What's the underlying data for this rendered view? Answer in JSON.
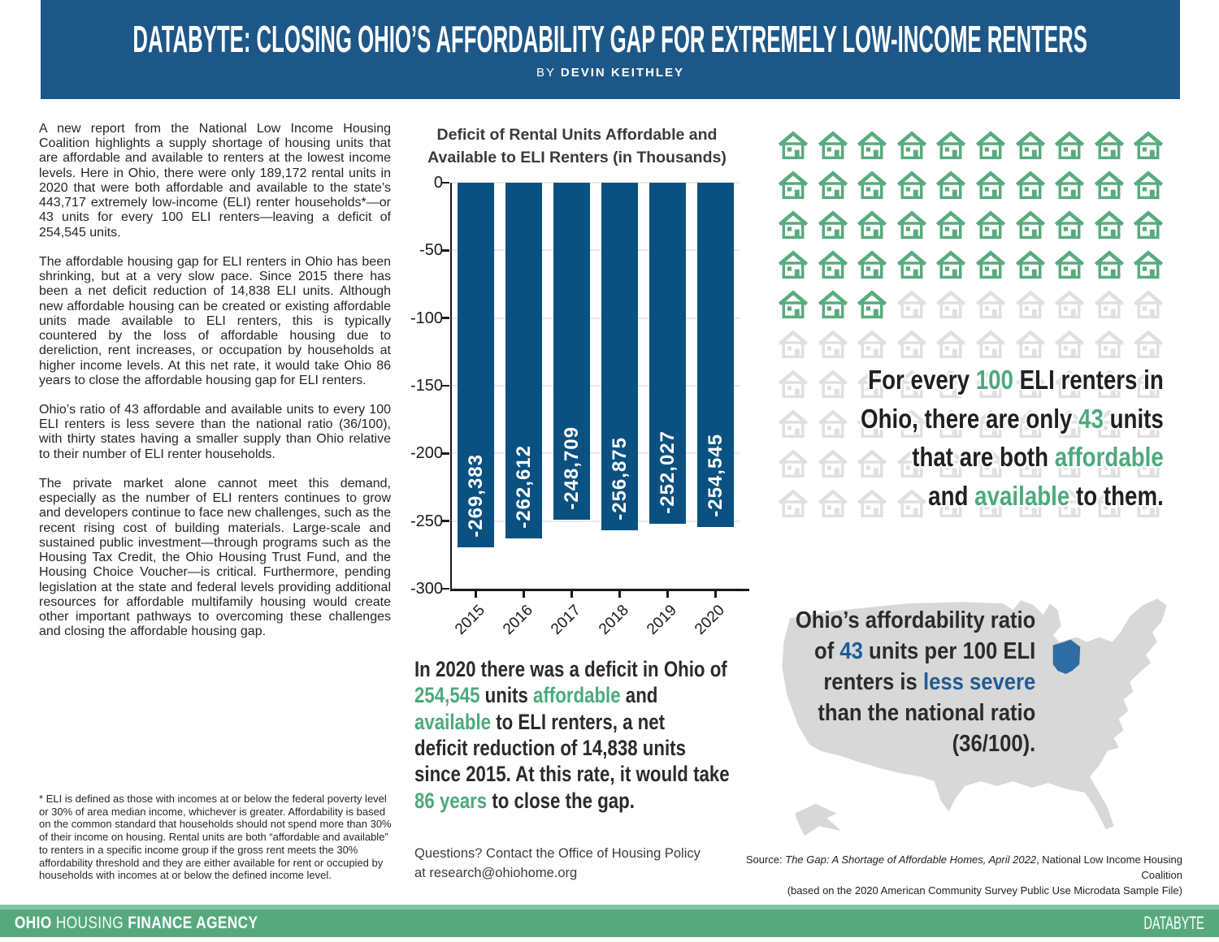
{
  "header": {
    "title": "DATABYTE: CLOSING OHIO’S AFFORDABILITY GAP FOR EXTREMELY LOW-INCOME RENTERS",
    "byline_prefix": "BY",
    "byline_author": "DEVIN KEITHLEY"
  },
  "article": {
    "paragraphs": [
      "A new report from the National Low Income Housing Coalition highlights a supply shortage of housing units that are affordable and available to renters at the lowest income levels. Here in Ohio, there were only 189,172 rental units in 2020 that were both affordable and available to the state’s 443,717 extremely low-income (ELI) renter households*—or 43 units for every 100 ELI renters—leaving a deficit of 254,545 units.",
      "The affordable housing gap for ELI renters in Ohio has been shrinking, but at a very slow pace. Since 2015 there has been a net deficit reduction of 14,838 ELI units. Although new affordable housing can be created or existing affordable units made available to ELI renters, this is typically countered by the loss of affordable housing due to dereliction, rent increases, or occupation by households at higher income levels. At this net rate, it would take Ohio 86 years to close the affordable housing gap for ELI renters.",
      "Ohio’s ratio of 43 affordable and available units to every 100 ELI renters is less severe than the national ratio (36/100), with thirty states having a smaller supply than Ohio relative to their number of ELI renter households.",
      "The private market alone cannot meet this demand, especially as the number of ELI renters continues to grow and developers continue to face new challenges, such as the recent rising cost of building materials. Large-scale and sustained public investment—through programs such as the Housing Tax Credit, the Ohio Housing Trust Fund, and the Housing Choice Voucher—is critical. Furthermore, pending legislation at the state and federal levels providing additional resources for affordable multifamily housing would create other important pathways to overcoming these challenges and closing the affordable housing gap."
    ],
    "footnote": "* ELI is defined as those with incomes at or below the federal poverty level or 30% of area median income, whichever is greater. Affordability is based on the common standard that households should not spend more than 30% of their income on housing. Rental units are both “affordable and available” to renters in a specific income group if the gross rent meets the 30% affordability threshold and they are either available for rent or occupied by households with incomes at or below the defined income level."
  },
  "chart_data": {
    "type": "bar",
    "title": "Deficit of Rental Units Affordable and Available to ELI Renters (in Thousands)",
    "title_line1": "Deficit of Rental Units Affordable and",
    "title_line2": "Available to ELI Renters (in Thousands)",
    "categories": [
      "2015",
      "2016",
      "2017",
      "2018",
      "2019",
      "2020"
    ],
    "values": [
      -269383,
      -262612,
      -248709,
      -256875,
      -252027,
      -254545
    ],
    "bar_labels": [
      "-269,383",
      "-262,612",
      "-248,709",
      "-256,875",
      "-252,027",
      "-254,545"
    ],
    "unit_scale": "thousands",
    "ylim": [
      -300,
      0
    ],
    "yticks": [
      0,
      -50,
      -100,
      -150,
      -200,
      -250,
      -300
    ],
    "grid": true,
    "legend": "none"
  },
  "housing_visual": {
    "total_houses": 100,
    "green_houses": 43,
    "caption_lines": [
      [
        {
          "t": "For every "
        },
        {
          "t": "100",
          "c": "green"
        },
        {
          "t": " ELI renters in"
        }
      ],
      [
        {
          "t": "Ohio, there are only "
        },
        {
          "t": "43",
          "c": "green"
        },
        {
          "t": " units"
        }
      ],
      [
        {
          "t": "that are both "
        },
        {
          "t": "affordable",
          "c": "green"
        }
      ],
      [
        {
          "t": "and "
        },
        {
          "t": "available",
          "c": "green"
        },
        {
          "t": " to them."
        }
      ]
    ]
  },
  "map_callout": {
    "lines": [
      [
        {
          "t": "Ohio’s affordability ratio"
        }
      ],
      [
        {
          "t": "of "
        },
        {
          "t": "43",
          "c": "blue"
        },
        {
          "t": " units per 100 ELI"
        }
      ],
      [
        {
          "t": "renters is "
        },
        {
          "t": "less severe",
          "c": "blue"
        }
      ],
      [
        {
          "t": "than the national ratio"
        }
      ],
      [
        {
          "t": "(36/100)."
        }
      ]
    ]
  },
  "deficit_callout": {
    "lines": [
      [
        {
          "t": "In 2020 there was a deficit in Ohio of"
        }
      ],
      [
        {
          "t": "254,545",
          "c": "green"
        },
        {
          "t": " units "
        },
        {
          "t": "affordable",
          "c": "green"
        },
        {
          "t": " and"
        }
      ],
      [
        {
          "t": "available",
          "c": "green"
        },
        {
          "t": " to ELI renters, a net"
        }
      ],
      [
        {
          "t": "deficit reduction of 14,838 units"
        }
      ],
      [
        {
          "t": "since 2015. At this rate, it would take"
        }
      ],
      [
        {
          "t": "86 years",
          "c": "green"
        },
        {
          "t": " to close the gap."
        }
      ]
    ]
  },
  "contact": {
    "line1": "Questions? Contact the Office of Housing Policy",
    "line2": "at research@ohiohome.org"
  },
  "source": {
    "line1_segments": [
      {
        "t": "Source: "
      },
      {
        "t": "The Gap: A Shortage of Affordable Homes, April 2022",
        "i": true
      },
      {
        "t": ", National Low Income Housing Coalition"
      }
    ],
    "line2": "(based on the 2020 American Community Survey Public Use Microdata Sample File)"
  },
  "footer": {
    "brand_segments": [
      {
        "t": "OHIO",
        "w": "bold"
      },
      {
        "t": " HOUSING ",
        "w": "light"
      },
      {
        "t": "FINANCE AGENCY",
        "w": "bold"
      }
    ],
    "right_label": "DATABYTE"
  },
  "colors": {
    "header_blue": "#1d5787",
    "bar_blue": "#0a5181",
    "green": "#57ac7d",
    "footer_green": "#57a97d",
    "accent_green_text": "#4caa7d",
    "accent_blue_text": "#1e5c95",
    "house_gray": "#e0e0e0",
    "map_gray": "#d8d8d8",
    "ohio_blue": "#2e6da4",
    "text_dark": "#231f20"
  }
}
